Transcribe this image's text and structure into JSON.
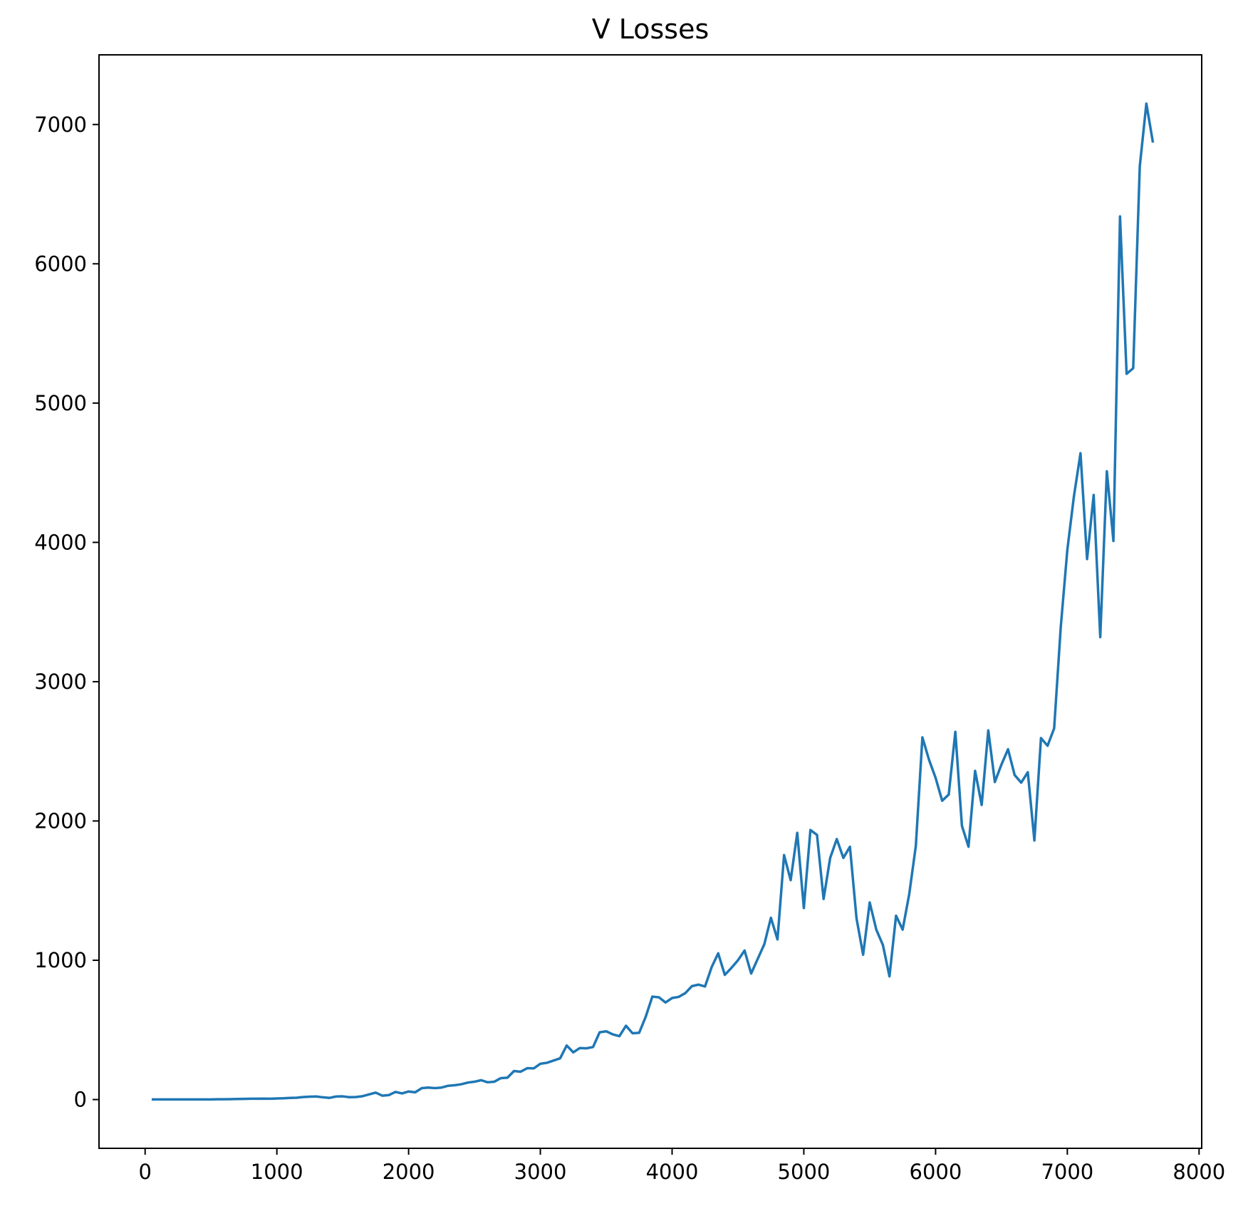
{
  "chart_data": {
    "type": "line",
    "title": "V Losses",
    "xlabel": "",
    "ylabel": "",
    "xlim": [
      -350,
      8020
    ],
    "ylim": [
      -350,
      7500
    ],
    "xticks": [
      0,
      1000,
      2000,
      3000,
      4000,
      5000,
      6000,
      7000,
      8000
    ],
    "yticks": [
      0,
      1000,
      2000,
      3000,
      4000,
      5000,
      6000,
      7000
    ],
    "grid": false,
    "legend": "none",
    "series": [
      {
        "color": "#1f77b4",
        "x": [
          50,
          100,
          150,
          200,
          250,
          300,
          350,
          400,
          450,
          500,
          550,
          600,
          650,
          700,
          750,
          800,
          850,
          900,
          950,
          1000,
          1050,
          1100,
          1150,
          1200,
          1250,
          1300,
          1350,
          1400,
          1450,
          1500,
          1550,
          1600,
          1650,
          1700,
          1750,
          1800,
          1850,
          1900,
          1950,
          2000,
          2050,
          2100,
          2150,
          2200,
          2250,
          2300,
          2350,
          2400,
          2450,
          2500,
          2550,
          2600,
          2650,
          2700,
          2750,
          2800,
          2850,
          2900,
          2950,
          3000,
          3050,
          3100,
          3150,
          3200,
          3250,
          3300,
          3350,
          3400,
          3450,
          3500,
          3550,
          3600,
          3650,
          3700,
          3750,
          3800,
          3850,
          3900,
          3950,
          4000,
          4050,
          4100,
          4150,
          4200,
          4250,
          4300,
          4350,
          4400,
          4450,
          4500,
          4550,
          4600,
          4650,
          4700,
          4750,
          4800,
          4850,
          4900,
          4950,
          5000,
          5050,
          5100,
          5150,
          5200,
          5250,
          5300,
          5350,
          5400,
          5450,
          5500,
          5550,
          5600,
          5650,
          5700,
          5750,
          5800,
          5850,
          5900,
          5950,
          6000,
          6050,
          6100,
          6150,
          6200,
          6250,
          6300,
          6350,
          6400,
          6450,
          6500,
          6550,
          6600,
          6650,
          6700,
          6750,
          6800,
          6850,
          6900,
          6950,
          7000,
          7050,
          7100,
          7150,
          7200,
          7250,
          7300,
          7350,
          7400,
          7450,
          7500,
          7550,
          7600,
          7650
        ],
        "y": [
          1,
          1,
          1,
          1,
          1,
          1,
          1,
          1,
          1,
          1,
          2,
          2,
          3,
          4,
          5,
          6,
          6,
          7,
          6,
          8,
          9,
          12,
          13,
          18,
          21,
          22,
          16,
          12,
          22,
          23,
          17,
          18,
          24,
          37,
          50,
          28,
          32,
          55,
          44,
          58,
          52,
          82,
          86,
          82,
          86,
          99,
          103,
          110,
          122,
          128,
          139,
          124,
          128,
          154,
          157,
          205,
          200,
          225,
          224,
          257,
          264,
          280,
          296,
          388,
          339,
          370,
          368,
          377,
          483,
          490,
          468,
          455,
          530,
          476,
          479,
          595,
          739,
          734,
          697,
          729,
          737,
          764,
          814,
          825,
          812,
          950,
          1050,
          895,
          945,
          1000,
          1070,
          905,
          1010,
          1115,
          1305,
          1150,
          1755,
          1575,
          1915,
          1375,
          1935,
          1900,
          1440,
          1735,
          1870,
          1735,
          1815,
          1300,
          1040,
          1415,
          1220,
          1110,
          885,
          1320,
          1220,
          1475,
          1820,
          2600,
          2440,
          2310,
          2145,
          2190,
          2640,
          1965,
          1815,
          2360,
          2115,
          2650,
          2280,
          2405,
          2515,
          2330,
          2275,
          2350,
          1860,
          2595,
          2540,
          2665,
          3390,
          3945,
          4330,
          4640,
          3880,
          4340,
          3320,
          4510,
          4010,
          6340,
          5210,
          5250,
          6700,
          7150,
          6870
        ]
      }
    ]
  }
}
